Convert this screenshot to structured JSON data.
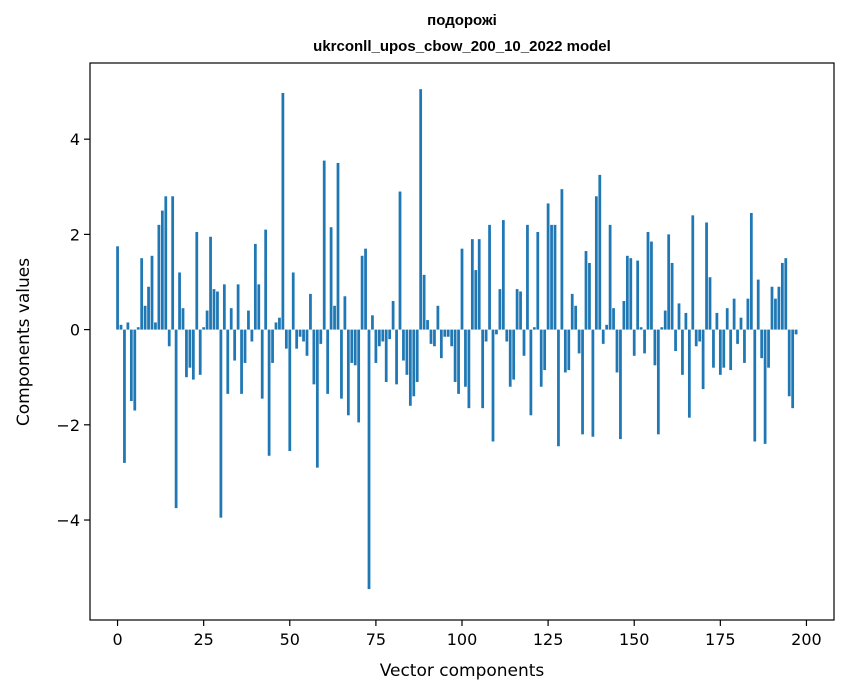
{
  "chart_data": {
    "type": "bar",
    "title": "подорожі",
    "subtitle": "ukrconll_upos_cbow_200_10_2022 model",
    "xlabel": "Vector components",
    "ylabel": "Components values",
    "xlim": [
      -8,
      208
    ],
    "ylim": [
      -6.1,
      5.6
    ],
    "xticks": [
      0,
      25,
      50,
      75,
      100,
      125,
      150,
      175,
      200
    ],
    "xtick_labels": [
      "0",
      "25",
      "50",
      "75",
      "100",
      "125",
      "150",
      "175",
      "200"
    ],
    "yticks": [
      -4,
      -2,
      0,
      2,
      4
    ],
    "ytick_labels": [
      "−4",
      "−2",
      "0",
      "2",
      "4"
    ],
    "grid": false,
    "bar_color": "#1f77b4",
    "values": [
      1.75,
      0.1,
      -2.8,
      0.15,
      -1.5,
      -1.7,
      0.05,
      1.5,
      0.5,
      0.9,
      1.55,
      0.15,
      2.2,
      2.5,
      2.8,
      -0.35,
      2.8,
      -3.75,
      1.2,
      0.45,
      -1.0,
      -0.8,
      -1.05,
      2.05,
      -0.95,
      0.05,
      0.4,
      1.95,
      0.85,
      0.8,
      -3.95,
      0.95,
      -1.35,
      0.45,
      -0.65,
      0.95,
      -1.35,
      -0.7,
      0.4,
      -0.25,
      1.8,
      0.95,
      -1.45,
      2.1,
      -2.65,
      -0.7,
      0.15,
      0.25,
      4.97,
      -0.4,
      -2.55,
      1.2,
      -0.4,
      -0.15,
      -0.25,
      -0.55,
      0.75,
      -1.15,
      -2.9,
      -0.3,
      3.55,
      -1.35,
      2.15,
      0.5,
      3.5,
      -1.45,
      0.7,
      -1.8,
      -0.7,
      -0.75,
      -1.95,
      1.55,
      1.7,
      -5.45,
      0.3,
      -0.7,
      -0.35,
      -0.25,
      -1.1,
      -0.2,
      0.6,
      -1.15,
      2.9,
      -0.65,
      -0.95,
      -1.6,
      -1.4,
      -1.1,
      5.05,
      1.15,
      0.2,
      -0.3,
      -0.35,
      0.5,
      -0.6,
      -0.15,
      -0.15,
      -0.35,
      -1.1,
      -1.35,
      1.7,
      -1.2,
      -1.65,
      1.9,
      1.25,
      1.9,
      -1.65,
      -0.25,
      2.2,
      -2.35,
      -0.1,
      0.85,
      2.3,
      -0.25,
      -1.2,
      -1.05,
      0.85,
      0.8,
      -0.55,
      2.2,
      -1.8,
      0.05,
      2.05,
      -1.2,
      -0.85,
      2.65,
      2.2,
      2.2,
      -2.45,
      2.95,
      -0.9,
      -0.85,
      0.75,
      0.5,
      -0.5,
      -2.2,
      1.65,
      1.4,
      -2.25,
      2.8,
      3.25,
      -0.3,
      0.1,
      2.2,
      0.45,
      -0.9,
      -2.3,
      0.6,
      1.55,
      1.5,
      -0.55,
      1.45,
      0.05,
      -0.5,
      2.05,
      1.85,
      -0.75,
      -2.2,
      0.05,
      0.4,
      2.0,
      1.4,
      -0.45,
      0.55,
      -0.95,
      0.35,
      -1.85,
      2.4,
      -0.35,
      -0.25,
      -1.25,
      2.25,
      1.1,
      -0.8,
      0.35,
      -0.95,
      -0.8,
      0.45,
      -0.85,
      0.65,
      -0.3,
      0.25,
      -0.7,
      0.65,
      2.45,
      -2.35,
      1.05,
      -0.6,
      -2.4,
      -0.8,
      0.9,
      0.65,
      0.9,
      1.4,
      1.5,
      -1.4,
      -1.65,
      -0.1
    ]
  }
}
